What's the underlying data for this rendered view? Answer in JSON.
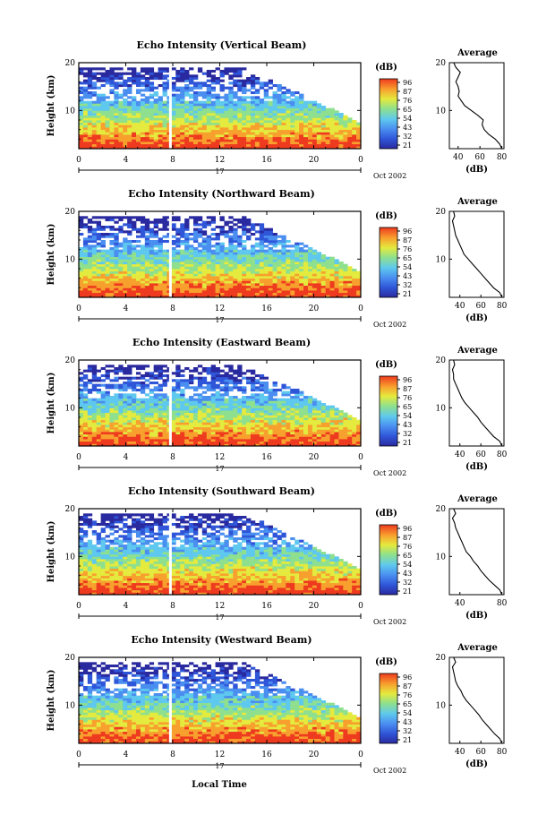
{
  "chart_data": {
    "type": "heatmap",
    "x_label": "Local Time",
    "date_label": "Oct 2002",
    "day_label": "17",
    "x_ticks": [
      "0",
      "4",
      "8",
      "12",
      "16",
      "20",
      "0"
    ],
    "x_range_hours": [
      0,
      24
    ],
    "y_label": "Height (km)",
    "y_ticks": [
      "10",
      "20"
    ],
    "y_range_km": [
      2,
      20
    ],
    "colorbar_label": "(dB)",
    "colorbar_ticks": [
      "96",
      "87",
      "76",
      "65",
      "54",
      "43",
      "32",
      "21"
    ],
    "colorbar_colors": [
      "#2a2aa0",
      "#2f56d8",
      "#4a8ef0",
      "#5ec8ee",
      "#8ee08e",
      "#e4ea3e",
      "#f8a02e",
      "#ee3a1e"
    ],
    "data_gap_hour": 7.8,
    "profile_title": "Average",
    "profile_xlabel": "(dB)",
    "panels": [
      {
        "title": "Echo Intensity (Vertical Beam)",
        "profile_xticks": [
          "40",
          "60",
          "80"
        ],
        "profile_xlim": [
          32,
          82
        ],
        "profile_heights_km": [
          2,
          3,
          4,
          5,
          6,
          7,
          8,
          9,
          10,
          11,
          12,
          13,
          14,
          15,
          16,
          17,
          18,
          19,
          20
        ],
        "profile_db": [
          80,
          78,
          74,
          68,
          64,
          62,
          63,
          58,
          52,
          46,
          43,
          40,
          41,
          40,
          38,
          40,
          42,
          38,
          36
        ]
      },
      {
        "title": "Echo Intensity (Northward Beam)",
        "profile_xticks": [
          "40",
          "60",
          "80"
        ],
        "profile_xlim": [
          30,
          82
        ],
        "profile_heights_km": [
          2,
          3,
          4,
          5,
          6,
          7,
          8,
          9,
          10,
          11,
          12,
          13,
          14,
          15,
          16,
          17,
          18,
          19,
          20
        ],
        "profile_db": [
          80,
          78,
          72,
          68,
          64,
          60,
          56,
          52,
          48,
          44,
          42,
          40,
          38,
          36,
          35,
          34,
          33,
          35,
          34
        ]
      },
      {
        "title": "Echo Intensity (Eastward Beam)",
        "profile_xticks": [
          "40",
          "60",
          "80"
        ],
        "profile_xlim": [
          30,
          82
        ],
        "profile_heights_km": [
          2,
          3,
          4,
          5,
          6,
          7,
          8,
          9,
          10,
          11,
          12,
          13,
          14,
          15,
          16,
          17,
          18,
          19,
          20
        ],
        "profile_db": [
          80,
          78,
          72,
          68,
          64,
          60,
          57,
          53,
          49,
          45,
          42,
          40,
          38,
          36,
          34,
          34,
          33,
          35,
          34
        ]
      },
      {
        "title": "Echo Intensity (Southward Beam)",
        "profile_xticks": [
          "40",
          "80"
        ],
        "profile_xlim": [
          30,
          82
        ],
        "profile_heights_km": [
          2,
          3,
          4,
          5,
          6,
          7,
          8,
          9,
          10,
          11,
          12,
          13,
          14,
          15,
          16,
          17,
          18,
          19,
          20
        ],
        "profile_db": [
          80,
          78,
          73,
          68,
          64,
          60,
          57,
          53,
          50,
          46,
          44,
          42,
          40,
          38,
          36,
          35,
          33,
          36,
          34
        ]
      },
      {
        "title": "Echo Intensity (Westward Beam)",
        "profile_xticks": [
          "40",
          "60",
          "80"
        ],
        "profile_xlim": [
          30,
          82
        ],
        "profile_heights_km": [
          2,
          3,
          4,
          5,
          6,
          7,
          8,
          9,
          10,
          11,
          12,
          13,
          14,
          15,
          16,
          17,
          18,
          19,
          20
        ],
        "profile_db": [
          80,
          78,
          73,
          69,
          65,
          61,
          58,
          54,
          50,
          46,
          43,
          41,
          38,
          36,
          35,
          34,
          33,
          36,
          34
        ]
      }
    ]
  }
}
